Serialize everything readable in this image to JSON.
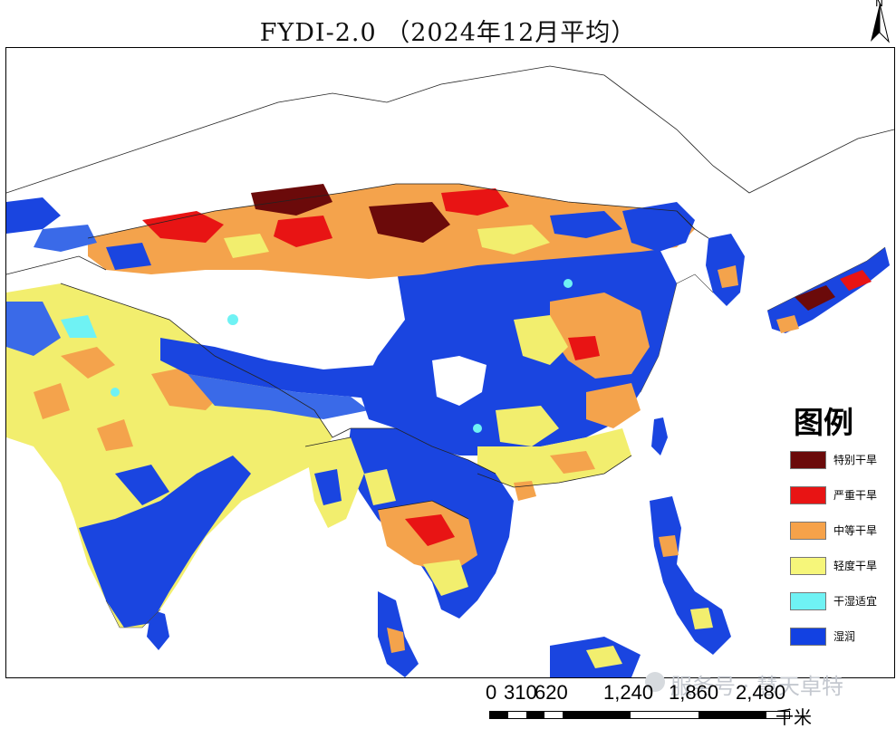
{
  "title": "FYDI-2.0 （2024年12月平均）",
  "north_arrow": {
    "label": "N",
    "icon": "north-arrow-icon"
  },
  "legend": {
    "title": "图例",
    "items": [
      {
        "label": "特别干旱",
        "color": "#6b0a0a"
      },
      {
        "label": "严重干旱",
        "color": "#e81414"
      },
      {
        "label": "中等干旱",
        "color": "#f6a24a"
      },
      {
        "label": "轻度干旱",
        "color": "#f6f67a"
      },
      {
        "label": "干湿适宜",
        "color": "#6ff2f4"
      },
      {
        "label": "湿润",
        "color": "#1241e2"
      }
    ]
  },
  "scale_bar": {
    "ticks": [
      "0",
      "310",
      "620",
      "1,240",
      "1,860",
      "2,480"
    ],
    "unit": "千米"
  },
  "watermark": {
    "text": "服务号 · 慧天卓特"
  },
  "colors": {
    "boundary": "#222222",
    "no_data": "#ffffff"
  }
}
